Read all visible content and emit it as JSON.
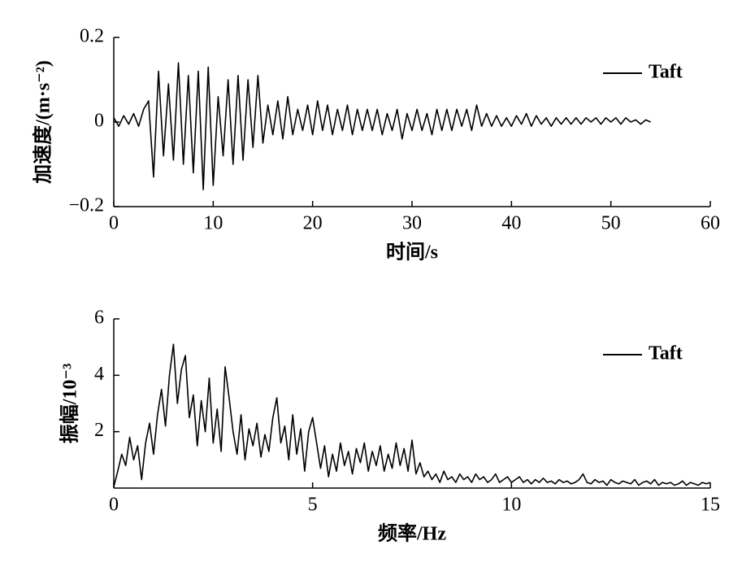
{
  "chart_data": [
    {
      "type": "line",
      "xlabel": "时间/s",
      "ylabel": "加速度/(m·s⁻²)",
      "xlim": [
        0,
        60
      ],
      "ylim": [
        -0.2,
        0.2
      ],
      "xticks": [
        0,
        10,
        20,
        30,
        40,
        50,
        60
      ],
      "yticks": [
        {
          "value": -0.2,
          "label": "−0.2"
        },
        0,
        0.2
      ],
      "legend": "upper right",
      "x": [
        0,
        0.5,
        1,
        1.5,
        2,
        2.5,
        3,
        3.5,
        4,
        4.5,
        5,
        5.5,
        6,
        6.5,
        7,
        7.5,
        8,
        8.5,
        9,
        9.5,
        10,
        10.5,
        11,
        11.5,
        12,
        12.5,
        13,
        13.5,
        14,
        14.5,
        15,
        15.5,
        16,
        16.5,
        17,
        17.5,
        18,
        18.5,
        19,
        19.5,
        20,
        20.5,
        21,
        21.5,
        22,
        22.5,
        23,
        23.5,
        24,
        24.5,
        25,
        25.5,
        26,
        26.5,
        27,
        27.5,
        28,
        28.5,
        29,
        29.5,
        30,
        30.5,
        31,
        31.5,
        32,
        32.5,
        33,
        33.5,
        34,
        34.5,
        35,
        35.5,
        36,
        36.5,
        37,
        37.5,
        38,
        38.5,
        39,
        39.5,
        40,
        40.5,
        41,
        41.5,
        42,
        42.5,
        43,
        43.5,
        44,
        44.5,
        45,
        45.5,
        46,
        46.5,
        47,
        47.5,
        48,
        48.5,
        49,
        49.5,
        50,
        50.5,
        51,
        51.5,
        52,
        52.5,
        53,
        53.5,
        54
      ],
      "series": [
        {
          "name": "Taft",
          "color": "#000000",
          "values": [
            0.01,
            -0.01,
            0.015,
            -0.005,
            0.02,
            -0.01,
            0.03,
            0.05,
            -0.13,
            0.12,
            -0.08,
            0.09,
            -0.09,
            0.14,
            -0.1,
            0.11,
            -0.12,
            0.12,
            -0.16,
            0.13,
            -0.15,
            0.06,
            -0.08,
            0.1,
            -0.1,
            0.11,
            -0.09,
            0.1,
            -0.06,
            0.11,
            -0.05,
            0.04,
            -0.03,
            0.05,
            -0.04,
            0.06,
            -0.03,
            0.03,
            -0.02,
            0.04,
            -0.03,
            0.05,
            -0.02,
            0.04,
            -0.03,
            0.03,
            -0.02,
            0.04,
            -0.03,
            0.03,
            -0.02,
            0.03,
            -0.02,
            0.03,
            -0.03,
            0.02,
            -0.02,
            0.03,
            -0.04,
            0.02,
            -0.02,
            0.03,
            -0.02,
            0.02,
            -0.03,
            0.03,
            -0.02,
            0.03,
            -0.02,
            0.03,
            -0.01,
            0.03,
            -0.02,
            0.04,
            -0.01,
            0.02,
            -0.01,
            0.015,
            -0.01,
            0.01,
            -0.01,
            0.015,
            -0.005,
            0.02,
            -0.01,
            0.015,
            -0.005,
            0.01,
            -0.01,
            0.01,
            -0.005,
            0.01,
            -0.005,
            0.01,
            -0.005,
            0.01,
            0.0,
            0.01,
            -0.005,
            0.01,
            0.0,
            0.01,
            -0.005,
            0.01,
            0.0,
            0.005,
            -0.005,
            0.005,
            0.0
          ]
        }
      ]
    },
    {
      "type": "line",
      "xlabel": "频率/Hz",
      "ylabel": "振幅/10⁻³",
      "xlim": [
        0,
        15
      ],
      "ylim": [
        0,
        6
      ],
      "xticks": [
        0,
        5,
        10,
        15
      ],
      "yticks": [
        2,
        4,
        6
      ],
      "legend": "upper right",
      "x": [
        0,
        0.1,
        0.2,
        0.3,
        0.4,
        0.5,
        0.6,
        0.7,
        0.8,
        0.9,
        1,
        1.1,
        1.2,
        1.3,
        1.4,
        1.5,
        1.6,
        1.7,
        1.8,
        1.9,
        2,
        2.1,
        2.2,
        2.3,
        2.4,
        2.5,
        2.6,
        2.7,
        2.8,
        2.9,
        3,
        3.1,
        3.2,
        3.3,
        3.4,
        3.5,
        3.6,
        3.7,
        3.8,
        3.9,
        4,
        4.1,
        4.2,
        4.3,
        4.4,
        4.5,
        4.6,
        4.7,
        4.8,
        4.9,
        5,
        5.1,
        5.2,
        5.3,
        5.4,
        5.5,
        5.6,
        5.7,
        5.8,
        5.9,
        6,
        6.1,
        6.2,
        6.3,
        6.4,
        6.5,
        6.6,
        6.7,
        6.8,
        6.9,
        7,
        7.1,
        7.2,
        7.3,
        7.4,
        7.5,
        7.6,
        7.7,
        7.8,
        7.9,
        8,
        8.1,
        8.2,
        8.3,
        8.4,
        8.5,
        8.6,
        8.7,
        8.8,
        8.9,
        9,
        9.1,
        9.2,
        9.3,
        9.4,
        9.5,
        9.6,
        9.7,
        9.8,
        9.9,
        10,
        10.1,
        10.2,
        10.3,
        10.4,
        10.5,
        10.6,
        10.7,
        10.8,
        10.9,
        11,
        11.1,
        11.2,
        11.3,
        11.4,
        11.5,
        11.6,
        11.7,
        11.8,
        11.9,
        12,
        12.1,
        12.2,
        12.3,
        12.4,
        12.5,
        12.6,
        12.7,
        12.8,
        12.9,
        13,
        13.1,
        13.2,
        13.3,
        13.4,
        13.5,
        13.6,
        13.7,
        13.8,
        13.9,
        14,
        14.1,
        14.2,
        14.3,
        14.4,
        14.5,
        14.6,
        14.7,
        14.8,
        14.9,
        15
      ],
      "series": [
        {
          "name": "Taft",
          "color": "#000000",
          "values": [
            0.05,
            0.6,
            1.2,
            0.8,
            1.8,
            1.0,
            1.5,
            0.3,
            1.6,
            2.3,
            1.2,
            2.6,
            3.5,
            2.2,
            4.0,
            5.1,
            3.0,
            4.2,
            4.7,
            2.5,
            3.3,
            1.5,
            3.1,
            2.0,
            3.9,
            1.6,
            2.8,
            1.3,
            4.3,
            3.2,
            2.0,
            1.2,
            2.6,
            1.0,
            2.1,
            1.5,
            2.3,
            1.1,
            1.9,
            1.3,
            2.5,
            3.2,
            1.6,
            2.2,
            1.0,
            2.6,
            1.2,
            2.1,
            0.6,
            2.0,
            2.5,
            1.6,
            0.7,
            1.5,
            0.4,
            1.2,
            0.6,
            1.6,
            0.8,
            1.3,
            0.5,
            1.4,
            0.9,
            1.6,
            0.6,
            1.3,
            0.8,
            1.5,
            0.6,
            1.2,
            0.7,
            1.6,
            0.8,
            1.4,
            0.6,
            1.7,
            0.5,
            0.9,
            0.4,
            0.6,
            0.3,
            0.5,
            0.2,
            0.6,
            0.3,
            0.4,
            0.2,
            0.5,
            0.3,
            0.4,
            0.2,
            0.5,
            0.3,
            0.4,
            0.2,
            0.3,
            0.5,
            0.2,
            0.3,
            0.4,
            0.2,
            0.3,
            0.4,
            0.2,
            0.3,
            0.15,
            0.3,
            0.2,
            0.35,
            0.2,
            0.25,
            0.15,
            0.3,
            0.2,
            0.25,
            0.15,
            0.2,
            0.3,
            0.5,
            0.2,
            0.15,
            0.3,
            0.2,
            0.25,
            0.1,
            0.3,
            0.2,
            0.15,
            0.25,
            0.2,
            0.15,
            0.3,
            0.1,
            0.2,
            0.25,
            0.15,
            0.3,
            0.1,
            0.2,
            0.15,
            0.2,
            0.1,
            0.15,
            0.25,
            0.1,
            0.2,
            0.15,
            0.1,
            0.2,
            0.15,
            0.2
          ]
        }
      ]
    }
  ]
}
